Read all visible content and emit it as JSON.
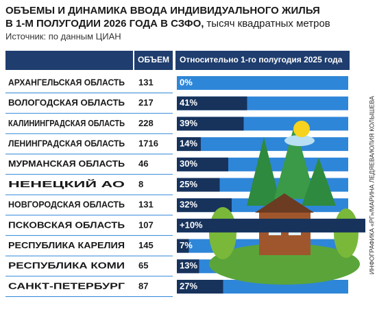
{
  "chart_data": {
    "type": "bar",
    "title": [
      "ОБЪЕМЫ И ДИНАМИКА ВВОДА ИНДИВИДУАЛЬНОГО ЖИЛЬЯ",
      "В 1-М ПОЛУГОДИИ 2026 ГОДА В СЗФО,"
    ],
    "unit": "тысяч квадратных метров",
    "source": "Источник: по данным ЦИАН",
    "headers": [
      "ОБЪЕМ",
      "Относительно 1-го полугодия 2025 года"
    ],
    "credit": "ИНФОГРАФИКА «РГ»/МАРИНА ЛЕДЯЕВА/ЮЛИЯ КОЛЫШЕВА",
    "categories": [
      "АРХАНГЕЛЬСКАЯ ОБЛАСТЬ",
      "ВОЛОГОДСКАЯ ОБЛАСТЬ",
      "КАЛИНИНГРАДСКАЯ ОБЛАСТЬ",
      "ЛЕНИНГРАДСКАЯ ОБЛАСТЬ",
      "МУРМАНСКАЯ ОБЛАСТЬ",
      "НЕНЕЦКИЙ АО",
      "НОВГОРОДСКАЯ ОБЛАСТЬ",
      "ПСКОВСКАЯ ОБЛАСТЬ",
      "РЕСПУБЛИКА КАРЕЛИЯ",
      "РЕСПУБЛИКА КОМИ",
      "САНКТ-ПЕТЕРБУРГ"
    ],
    "volumes": [
      131,
      217,
      228,
      1716,
      46,
      8,
      131,
      107,
      145,
      65,
      87
    ],
    "values": [
      0,
      41,
      39,
      14,
      30,
      25,
      32,
      10,
      7,
      13,
      27
    ],
    "value_labels": [
      "0%",
      "41%",
      "39%",
      "14%",
      "30%",
      "25%",
      "32%",
      "+10%",
      "7%",
      "13%",
      "27%"
    ],
    "xlim": [
      0,
      100
    ],
    "color": "#17335c",
    "track_color": "#2e86d8"
  }
}
